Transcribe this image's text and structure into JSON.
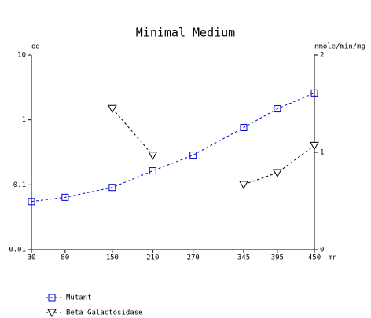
{
  "chart_data": {
    "type": "line",
    "title": "Minimal Medium",
    "y_label": "od",
    "y2_label": "nmole/min/mg",
    "x_label": "mn",
    "x": [
      30,
      80,
      150,
      210,
      270,
      345,
      395,
      450
    ],
    "xlim": [
      30,
      450
    ],
    "xticks": [
      30,
      80,
      150,
      210,
      270,
      345,
      395,
      450
    ],
    "ylim": [
      0.01,
      10
    ],
    "yticks": [
      0.01,
      0.1,
      1,
      10
    ],
    "y_log": true,
    "y2lim": [
      0,
      2
    ],
    "y2ticks": [
      0,
      1,
      2
    ],
    "series": [
      {
        "name": "Mutant",
        "color": "#0000cc",
        "marker": "square",
        "values": [
          0.055,
          0.064,
          0.091,
          0.164,
          0.286,
          0.76,
          1.48,
          2.6
        ]
      },
      {
        "name": "Beta Galactosidase",
        "color": "#000000",
        "marker": "triangle-down",
        "axis": "y2",
        "values": [
          null,
          null,
          1.45,
          0.97,
          null,
          0.67,
          0.79,
          1.07
        ]
      }
    ]
  }
}
